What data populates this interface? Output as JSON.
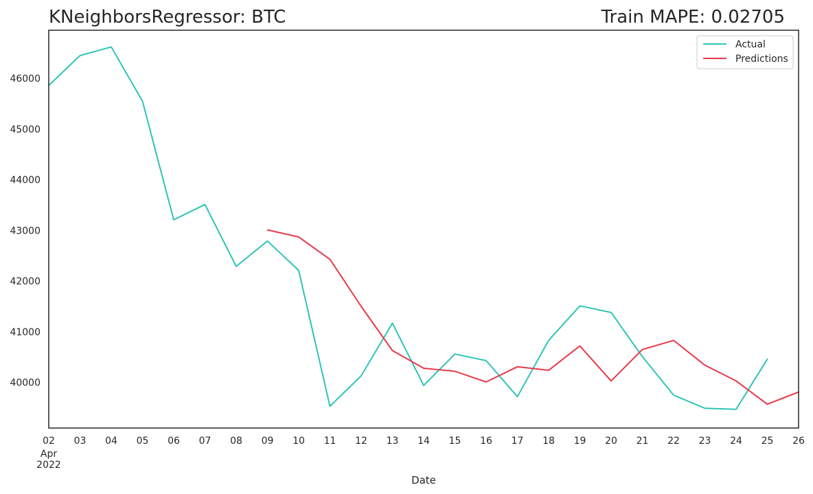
{
  "chart_data": {
    "type": "line",
    "title": "KNeighborsRegressor: BTC",
    "title_right": "Train MAPE: 0.02705",
    "xlabel": "Date",
    "ylabel": "",
    "x": [
      "2022-04-02",
      "2022-04-03",
      "2022-04-04",
      "2022-04-05",
      "2022-04-06",
      "2022-04-07",
      "2022-04-08",
      "2022-04-09",
      "2022-04-10",
      "2022-04-11",
      "2022-04-12",
      "2022-04-13",
      "2022-04-14",
      "2022-04-15",
      "2022-04-16",
      "2022-04-17",
      "2022-04-18",
      "2022-04-19",
      "2022-04-20",
      "2022-04-21",
      "2022-04-22",
      "2022-04-23",
      "2022-04-24",
      "2022-04-25",
      "2022-04-26"
    ],
    "x_tick_labels": [
      "02",
      "03",
      "04",
      "05",
      "06",
      "07",
      "08",
      "09",
      "10",
      "11",
      "12",
      "13",
      "14",
      "15",
      "16",
      "17",
      "18",
      "19",
      "20",
      "21",
      "22",
      "23",
      "24",
      "25",
      "26"
    ],
    "x_tick_sublabels": [
      "Apr",
      "2022"
    ],
    "yticks": [
      40000,
      41000,
      42000,
      43000,
      44000,
      45000,
      46000
    ],
    "ylim": [
      39100,
      46950
    ],
    "grid": false,
    "legend_position": "top-right",
    "series": [
      {
        "name": "Actual",
        "color": "#2ec4b6",
        "values": [
          45860,
          46450,
          46620,
          45550,
          43210,
          43510,
          42290,
          42790,
          42210,
          39530,
          40130,
          41170,
          39940,
          40560,
          40430,
          39720,
          40830,
          41510,
          41380,
          40510,
          39750,
          39490,
          39470,
          40460,
          null
        ]
      },
      {
        "name": "Predictions",
        "color": "#e63946",
        "values": [
          null,
          null,
          null,
          null,
          null,
          null,
          null,
          43010,
          42870,
          42430,
          41500,
          40630,
          40280,
          40220,
          40010,
          40310,
          40240,
          40720,
          40030,
          40650,
          40830,
          40340,
          40030,
          39570,
          39810
        ]
      }
    ]
  }
}
